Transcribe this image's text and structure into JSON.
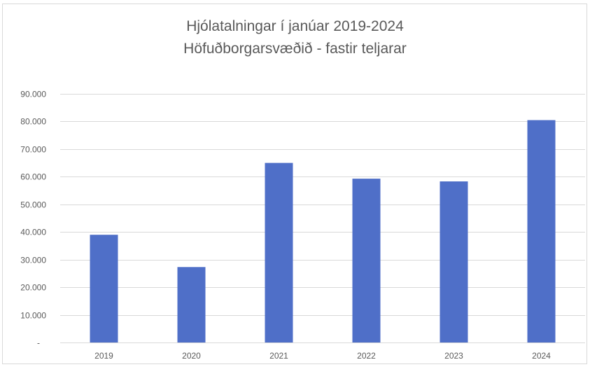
{
  "chart_data": {
    "type": "bar",
    "title": "Hjólatalningar í janúar 2019-2024",
    "subtitle": "Höfuðborgarsvæðið - fastir teljarar",
    "categories": [
      "2019",
      "2020",
      "2021",
      "2022",
      "2023",
      "2024"
    ],
    "values": [
      39000,
      27300,
      65000,
      59300,
      58300,
      80500
    ],
    "xlabel": "",
    "ylabel": "",
    "ylim": [
      0,
      90000
    ],
    "yticks": [
      0,
      10000,
      20000,
      30000,
      40000,
      50000,
      60000,
      70000,
      80000,
      90000
    ],
    "ytick_labels": [
      "-",
      "10.000",
      "20.000",
      "30.000",
      "40.000",
      "50.000",
      "60.000",
      "70.000",
      "80.000",
      "90.000"
    ],
    "grid": true,
    "legend": "none",
    "bar_color": "#4f6fc8",
    "grid_color": "#d9d9d9",
    "text_color": "#595959"
  }
}
